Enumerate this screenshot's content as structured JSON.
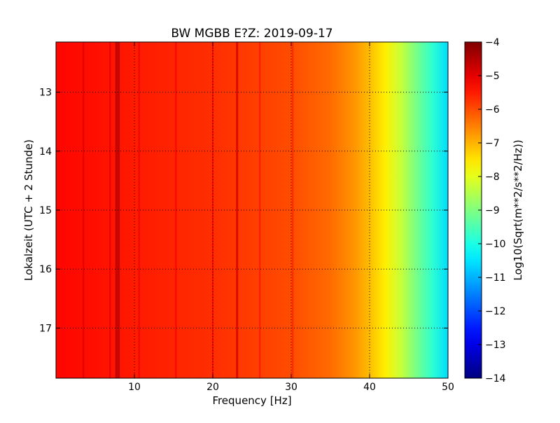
{
  "chart_data": {
    "type": "heatmap",
    "title": "BW MGBB E?Z: 2019-09-17",
    "xlabel": "Frequency [Hz]",
    "ylabel": "Lokalzeit (UTC + 2 Stunde)",
    "xlim": [
      0,
      50
    ],
    "ylim": [
      12.15,
      17.85
    ],
    "y_inverted": true,
    "x_ticks": [
      10,
      20,
      30,
      40,
      50
    ],
    "x_tick_labels": [
      "10",
      "20",
      "30",
      "40",
      "50"
    ],
    "y_ticks": [
      13,
      14,
      15,
      16,
      17
    ],
    "y_tick_labels": [
      "13",
      "14",
      "15",
      "16",
      "17"
    ],
    "grid": true,
    "grid_style": "dotted",
    "colormap": "jet",
    "colorbar": {
      "label": "Log10(Sqrt(m**2/s**2/Hz))",
      "range": [
        -14,
        -4
      ],
      "ticks": [
        -4,
        -5,
        -6,
        -7,
        -8,
        -9,
        -10,
        -11,
        -12,
        -13,
        -14
      ],
      "tick_labels": [
        "−4",
        "−5",
        "−6",
        "−7",
        "−8",
        "−9",
        "−10",
        "−11",
        "−12",
        "−13",
        "−14"
      ]
    },
    "spectrum_profile": {
      "frequency_hz": [
        0,
        5,
        10,
        20,
        25,
        30,
        35,
        38,
        40,
        42,
        44,
        46,
        48,
        50
      ],
      "log10_level": [
        -5.3,
        -5.4,
        -5.5,
        -5.7,
        -5.85,
        -6.0,
        -6.3,
        -6.7,
        -7.1,
        -7.6,
        -8.3,
        -9.1,
        -9.8,
        -10.6
      ]
    },
    "line_features_hz": [
      3.5,
      6.9,
      7.7,
      8.0,
      10.6,
      15.3,
      20.0,
      23.1,
      26.0,
      30.2
    ],
    "strong_line_features_hz": [
      7.7,
      8.0,
      23.1
    ]
  }
}
